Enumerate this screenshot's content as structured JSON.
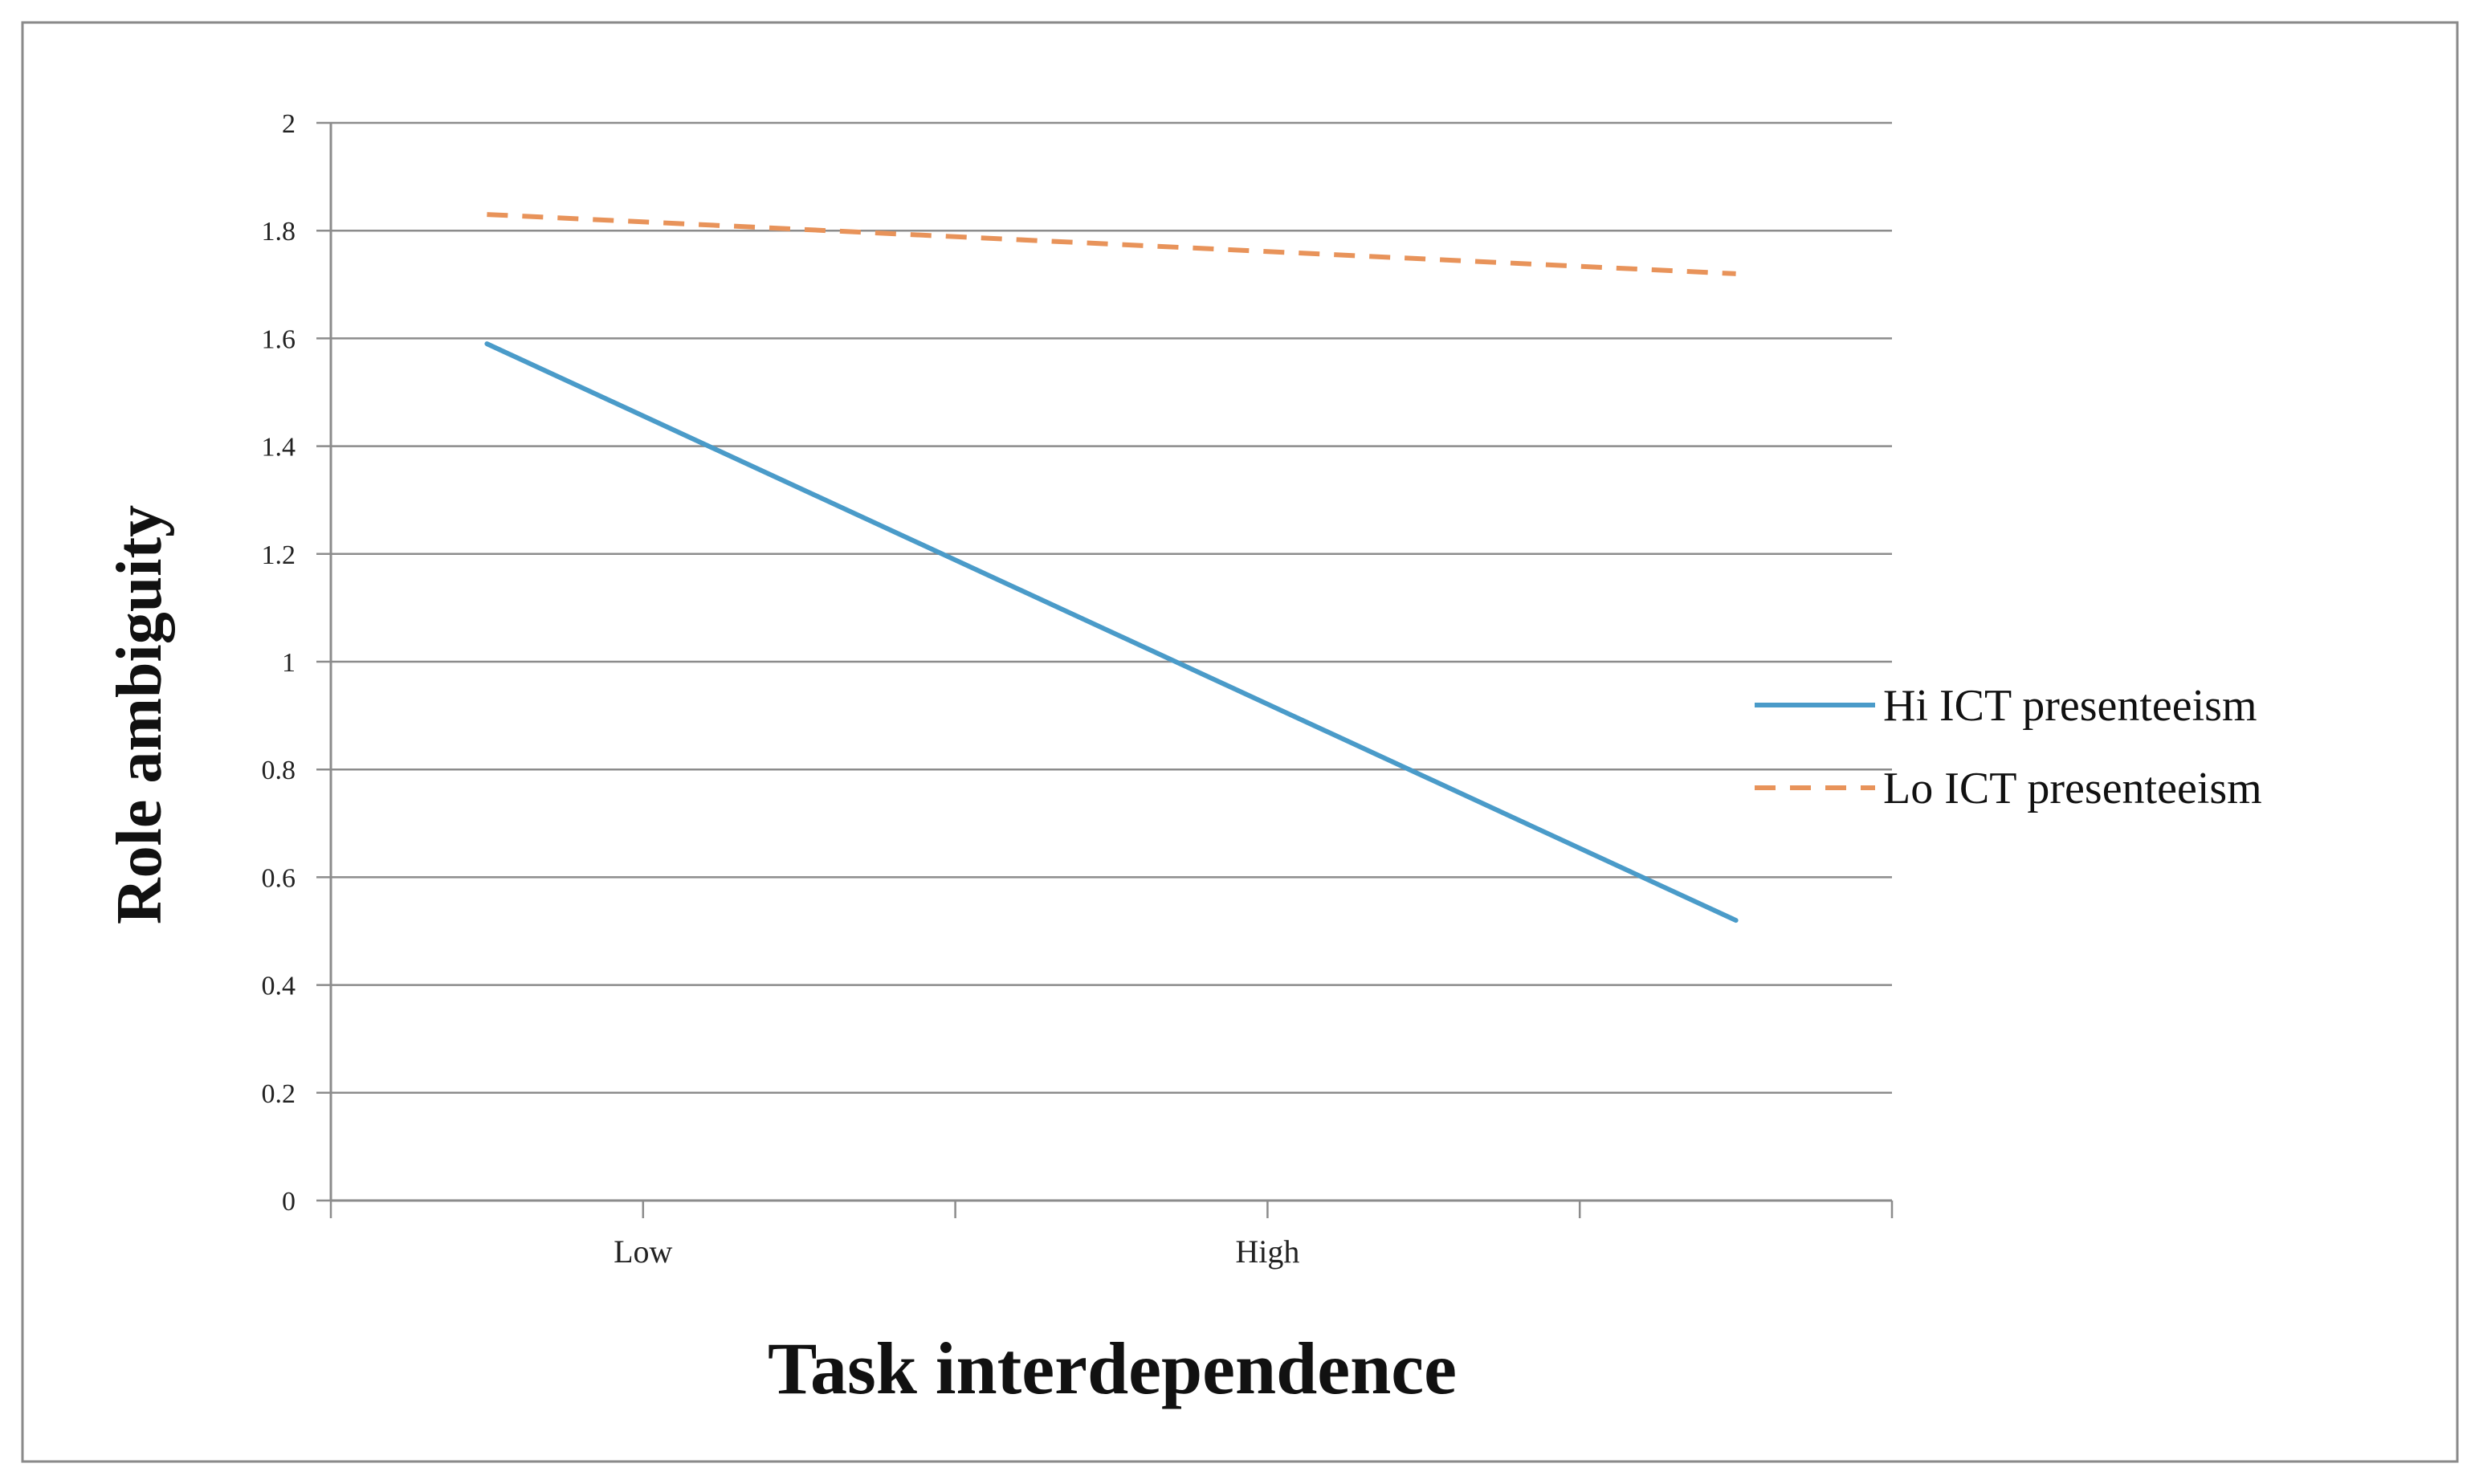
{
  "chart_data": {
    "type": "line",
    "title": "",
    "xlabel": "Task interdependence",
    "ylabel": "Role ambiguity",
    "categories": [
      "Low",
      "High"
    ],
    "x_positions": [
      0.5,
      1.5
    ],
    "xlim": [
      0,
      2.5
    ],
    "ylim": [
      0,
      2
    ],
    "yticks": [
      "0",
      "0.2",
      "0.4",
      "0.6",
      "0.8",
      "1",
      "1.2",
      "1.4",
      "1.6",
      "1.8",
      "2"
    ],
    "grid": true,
    "legend_position": "right",
    "series": [
      {
        "name": "Hi ICT presenteeism",
        "x": [
          0.25,
          2.25
        ],
        "y": [
          1.59,
          0.52
        ],
        "color": "#4a9bc9",
        "dash": "solid"
      },
      {
        "name": "Lo ICT presenteeism",
        "x": [
          0.25,
          2.25
        ],
        "y": [
          1.83,
          1.72
        ],
        "color": "#e8935a",
        "dash": "dashed"
      }
    ]
  }
}
